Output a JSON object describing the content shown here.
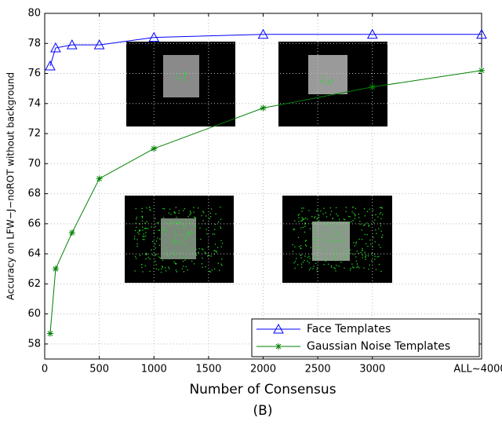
{
  "chart_data": {
    "type": "line",
    "x_label": "Number of Consensus",
    "y_label": "Accuracy on LFW−J−noROT without background",
    "caption": "(B)",
    "xlim": [
      0,
      4000
    ],
    "ylim": [
      57,
      80
    ],
    "xticks": [
      0,
      500,
      1000,
      1500,
      2000,
      2500,
      3000,
      {
        "value": 4000,
        "label": "ALL~4000"
      }
    ],
    "yticks": [
      58,
      60,
      62,
      64,
      66,
      68,
      70,
      72,
      74,
      76,
      78,
      80
    ],
    "grid": true,
    "legend_position": "lower right",
    "series": [
      {
        "name": "Face Templates",
        "color": "#0000ff",
        "marker": "triangle",
        "x": [
          50,
          100,
          250,
          500,
          1000,
          2000,
          3000,
          4000
        ],
        "values": [
          76.5,
          77.7,
          77.9,
          77.9,
          78.4,
          78.6,
          78.6,
          78.6
        ]
      },
      {
        "name": "Gaussian Noise Templates",
        "color": "#008000",
        "marker": "asterisk",
        "x": [
          50,
          100,
          250,
          500,
          1000,
          2000,
          3000,
          4000
        ],
        "values": [
          58.7,
          63.0,
          65.4,
          69.0,
          71.0,
          73.7,
          75.1,
          76.2
        ]
      }
    ]
  }
}
